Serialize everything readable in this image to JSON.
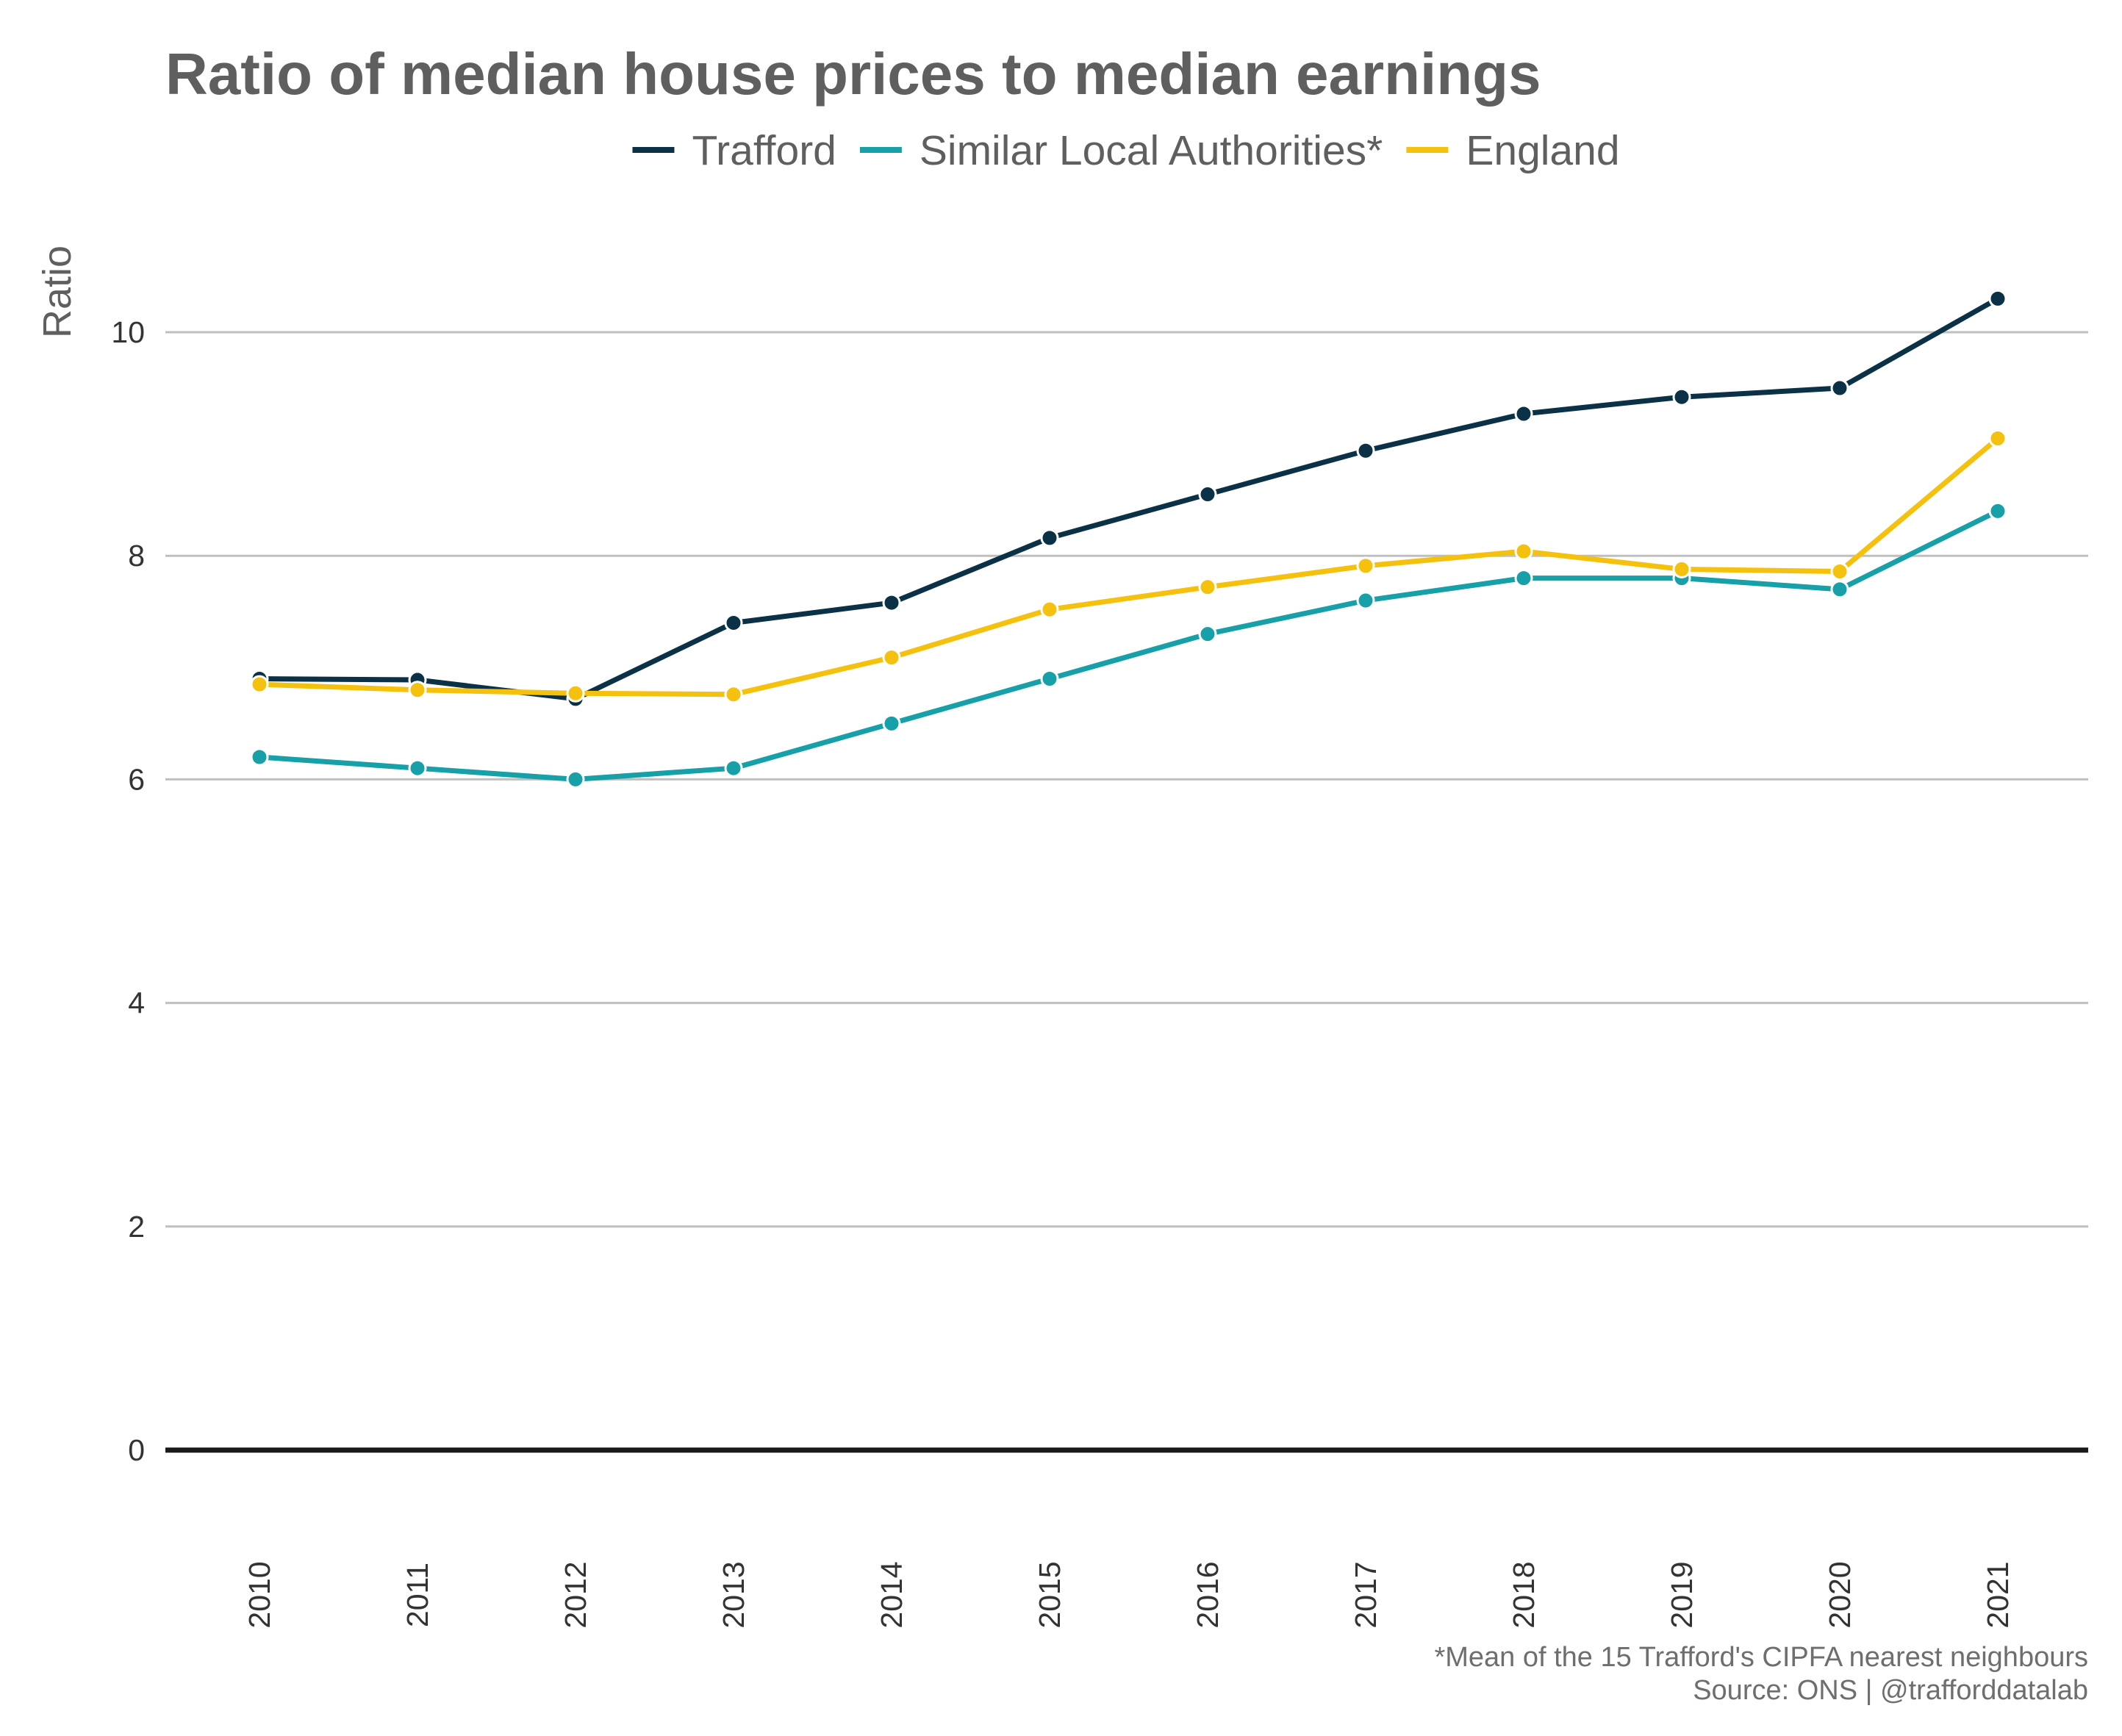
{
  "colors": {
    "trafford": "#0b3146",
    "similar": "#17a0a8",
    "england": "#f5c10f",
    "grid": "#bfbfbf",
    "baseline": "#1a1a1a"
  },
  "chart_data": {
    "type": "line",
    "title": "Ratio of median house prices to median earnings",
    "ylabel": "Ratio",
    "xlabel": "",
    "x": [
      "2010",
      "2011",
      "2012",
      "2013",
      "2014",
      "2015",
      "2016",
      "2017",
      "2018",
      "2019",
      "2020",
      "2021"
    ],
    "ylim": [
      0,
      11
    ],
    "yticks": [
      0,
      2,
      4,
      6,
      8,
      10
    ],
    "grid": true,
    "legend_position": "top-center",
    "series": [
      {
        "key": "trafford",
        "name": "Trafford",
        "values": [
          6.9,
          6.89,
          6.72,
          7.4,
          7.58,
          8.16,
          8.55,
          8.94,
          9.27,
          9.42,
          9.5,
          10.3
        ]
      },
      {
        "key": "similar",
        "name": "Similar Local Authorities*",
        "values": [
          6.2,
          6.1,
          6.0,
          6.1,
          6.5,
          6.9,
          7.3,
          7.6,
          7.8,
          7.8,
          7.7,
          8.4
        ]
      },
      {
        "key": "england",
        "name": "England",
        "values": [
          6.85,
          6.8,
          6.77,
          6.76,
          7.09,
          7.52,
          7.72,
          7.91,
          8.04,
          7.88,
          7.86,
          9.05
        ]
      }
    ],
    "caption_lines": [
      "*Mean of the 15 Trafford's CIPFA nearest neighbours",
      "Source: ONS | @trafforddatalab"
    ]
  }
}
